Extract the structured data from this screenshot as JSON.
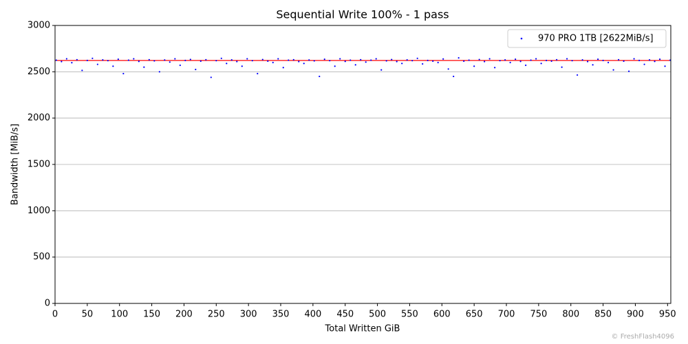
{
  "chart_data": {
    "type": "scatter",
    "title": "Sequential Write 100% - 1 pass",
    "x_label": "Total Written GiB",
    "y_label": "Bandwidth [MiB/s]",
    "watermark": "© FreshFlash4096",
    "xlim": [
      0,
      955
    ],
    "xticks": [
      0,
      50,
      100,
      150,
      200,
      250,
      300,
      350,
      400,
      450,
      500,
      550,
      600,
      650,
      700,
      750,
      800,
      850,
      900,
      950
    ],
    "ylim": [
      0,
      3000
    ],
    "yticks": [
      0,
      500,
      1000,
      1500,
      2000,
      2500,
      3000
    ],
    "grid": true,
    "legend": "upper right",
    "reference_line": {
      "value": 2622,
      "color": "#ff0000"
    },
    "x": [
      2,
      10,
      18,
      26,
      34,
      42,
      50,
      58,
      66,
      74,
      82,
      90,
      98,
      106,
      114,
      122,
      130,
      138,
      146,
      154,
      162,
      170,
      178,
      186,
      194,
      202,
      210,
      218,
      226,
      234,
      242,
      250,
      258,
      266,
      274,
      282,
      290,
      298,
      306,
      314,
      322,
      330,
      338,
      346,
      354,
      362,
      370,
      378,
      386,
      394,
      402,
      410,
      418,
      426,
      434,
      442,
      450,
      458,
      466,
      474,
      482,
      490,
      498,
      506,
      514,
      522,
      530,
      538,
      546,
      554,
      562,
      570,
      578,
      586,
      594,
      602,
      610,
      618,
      626,
      634,
      642,
      650,
      658,
      666,
      674,
      682,
      690,
      698,
      706,
      714,
      722,
      730,
      738,
      746,
      754,
      762,
      770,
      778,
      786,
      794,
      802,
      810,
      818,
      826,
      834,
      842,
      850,
      858,
      866,
      874,
      882,
      890,
      898,
      906,
      914,
      922,
      930,
      938,
      946,
      954
    ],
    "series": [
      {
        "name": "970 PRO 1TB [2622MiB/s]",
        "color": "#0000ff",
        "values": [
          2625,
          2610,
          2640,
          2598,
          2630,
          2515,
          2622,
          2645,
          2580,
          2628,
          2620,
          2560,
          2635,
          2480,
          2625,
          2640,
          2612,
          2550,
          2630,
          2618,
          2500,
          2627,
          2605,
          2640,
          2570,
          2622,
          2633,
          2525,
          2615,
          2630,
          2440,
          2620,
          2645,
          2590,
          2628,
          2610,
          2560,
          2640,
          2620,
          2480,
          2632,
          2615,
          2600,
          2640,
          2545,
          2625,
          2630,
          2610,
          2590,
          2627,
          2618,
          2450,
          2635,
          2620,
          2560,
          2640,
          2612,
          2625,
          2575,
          2630,
          2605,
          2625,
          2640,
          2520,
          2618,
          2632,
          2610,
          2590,
          2628,
          2620,
          2645,
          2585,
          2622,
          2615,
          2600,
          2638,
          2530,
          2450,
          2650,
          2615,
          2625,
          2560,
          2632,
          2610,
          2640,
          2545,
          2620,
          2628,
          2600,
          2635,
          2612,
          2570,
          2625,
          2640,
          2590,
          2622,
          2615,
          2630,
          2550,
          2640,
          2620,
          2465,
          2628,
          2610,
          2575,
          2635,
          2622,
          2600,
          2520,
          2630,
          2615,
          2505,
          2640,
          2622,
          2580,
          2628,
          2612,
          2635,
          2560,
          2625
        ]
      }
    ]
  }
}
